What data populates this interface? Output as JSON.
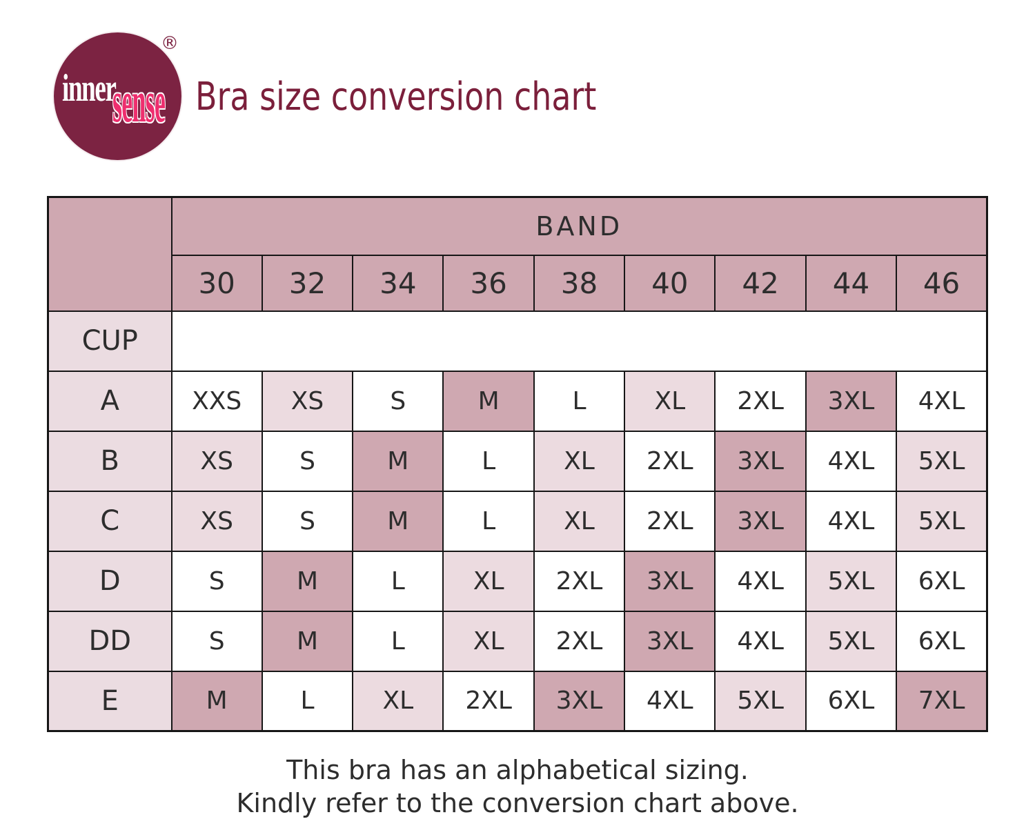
{
  "logo": {
    "word_inner": "inner",
    "word_sense": "sense",
    "registered": "®",
    "circle_color": "#7c2342",
    "inner_color": "#ffffff",
    "sense_color": "#ee2e6e"
  },
  "header": {
    "title": "Bra size conversion chart",
    "title_color": "#7b1f3b"
  },
  "table": {
    "band_header": "BAND",
    "cup_header": "CUP",
    "bands": [
      "30",
      "32",
      "34",
      "36",
      "38",
      "40",
      "42",
      "44",
      "46"
    ],
    "rows": [
      {
        "cup": "A",
        "cells": [
          {
            "size": "XXS",
            "shade": "white"
          },
          {
            "size": "XS",
            "shade": "light"
          },
          {
            "size": "S",
            "shade": "white"
          },
          {
            "size": "M",
            "shade": "dark"
          },
          {
            "size": "L",
            "shade": "white"
          },
          {
            "size": "XL",
            "shade": "light"
          },
          {
            "size": "2XL",
            "shade": "white"
          },
          {
            "size": "3XL",
            "shade": "dark"
          },
          {
            "size": "4XL",
            "shade": "white"
          }
        ]
      },
      {
        "cup": "B",
        "cells": [
          {
            "size": "XS",
            "shade": "light"
          },
          {
            "size": "S",
            "shade": "white"
          },
          {
            "size": "M",
            "shade": "dark"
          },
          {
            "size": "L",
            "shade": "white"
          },
          {
            "size": "XL",
            "shade": "light"
          },
          {
            "size": "2XL",
            "shade": "white"
          },
          {
            "size": "3XL",
            "shade": "dark"
          },
          {
            "size": "4XL",
            "shade": "white"
          },
          {
            "size": "5XL",
            "shade": "light"
          }
        ]
      },
      {
        "cup": "C",
        "cells": [
          {
            "size": "XS",
            "shade": "light"
          },
          {
            "size": "S",
            "shade": "white"
          },
          {
            "size": "M",
            "shade": "dark"
          },
          {
            "size": "L",
            "shade": "white"
          },
          {
            "size": "XL",
            "shade": "light"
          },
          {
            "size": "2XL",
            "shade": "white"
          },
          {
            "size": "3XL",
            "shade": "dark"
          },
          {
            "size": "4XL",
            "shade": "white"
          },
          {
            "size": "5XL",
            "shade": "light"
          }
        ]
      },
      {
        "cup": "D",
        "cells": [
          {
            "size": "S",
            "shade": "white"
          },
          {
            "size": "M",
            "shade": "dark"
          },
          {
            "size": "L",
            "shade": "white"
          },
          {
            "size": "XL",
            "shade": "light"
          },
          {
            "size": "2XL",
            "shade": "white"
          },
          {
            "size": "3XL",
            "shade": "dark"
          },
          {
            "size": "4XL",
            "shade": "white"
          },
          {
            "size": "5XL",
            "shade": "light"
          },
          {
            "size": "6XL",
            "shade": "white"
          }
        ]
      },
      {
        "cup": "DD",
        "cells": [
          {
            "size": "S",
            "shade": "white"
          },
          {
            "size": "M",
            "shade": "dark"
          },
          {
            "size": "L",
            "shade": "white"
          },
          {
            "size": "XL",
            "shade": "light"
          },
          {
            "size": "2XL",
            "shade": "white"
          },
          {
            "size": "3XL",
            "shade": "dark"
          },
          {
            "size": "4XL",
            "shade": "white"
          },
          {
            "size": "5XL",
            "shade": "light"
          },
          {
            "size": "6XL",
            "shade": "white"
          }
        ]
      },
      {
        "cup": "E",
        "cells": [
          {
            "size": "M",
            "shade": "dark"
          },
          {
            "size": "L",
            "shade": "white"
          },
          {
            "size": "XL",
            "shade": "light"
          },
          {
            "size": "2XL",
            "shade": "white"
          },
          {
            "size": "3XL",
            "shade": "dark"
          },
          {
            "size": "4XL",
            "shade": "white"
          },
          {
            "size": "5XL",
            "shade": "light"
          },
          {
            "size": "6XL",
            "shade": "white"
          },
          {
            "size": "7XL",
            "shade": "dark"
          }
        ]
      }
    ],
    "colors": {
      "mauve": "#cfa8b1",
      "light_pink": "#ecdbe0",
      "label_pink": "#ebdce1",
      "cell_white": "#ffffff",
      "border": "#161616",
      "text": "#2d2d2d"
    }
  },
  "footer": {
    "line1": "This bra has an alphabetical sizing.",
    "line2": "Kindly refer to the conversion chart above."
  },
  "chart_data": {
    "type": "table",
    "title": "Bra size conversion chart",
    "columns": [
      "CUP",
      "30",
      "32",
      "34",
      "36",
      "38",
      "40",
      "42",
      "44",
      "46"
    ],
    "column_group_label": "BAND",
    "rows": [
      [
        "A",
        "XXS",
        "XS",
        "S",
        "M",
        "L",
        "XL",
        "2XL",
        "3XL",
        "4XL"
      ],
      [
        "B",
        "XS",
        "S",
        "M",
        "L",
        "XL",
        "2XL",
        "3XL",
        "4XL",
        "5XL"
      ],
      [
        "C",
        "XS",
        "S",
        "M",
        "L",
        "XL",
        "2XL",
        "3XL",
        "4XL",
        "5XL"
      ],
      [
        "D",
        "S",
        "M",
        "L",
        "XL",
        "2XL",
        "3XL",
        "4XL",
        "5XL",
        "6XL"
      ],
      [
        "DD",
        "S",
        "M",
        "L",
        "XL",
        "2XL",
        "3XL",
        "4XL",
        "5XL",
        "6XL"
      ],
      [
        "E",
        "M",
        "L",
        "XL",
        "2XL",
        "3XL",
        "4XL",
        "5XL",
        "6XL",
        "7XL"
      ]
    ],
    "shading_rule": {
      "dark_mauve_sizes": [
        "M",
        "3XL",
        "7XL"
      ],
      "light_pink_sizes": [
        "XS",
        "XL",
        "5XL"
      ],
      "white_sizes": [
        "XXS",
        "S",
        "L",
        "2XL",
        "4XL",
        "6XL"
      ]
    },
    "notes": [
      "This bra has an alphabetical sizing.",
      "Kindly refer to the conversion chart above."
    ]
  }
}
